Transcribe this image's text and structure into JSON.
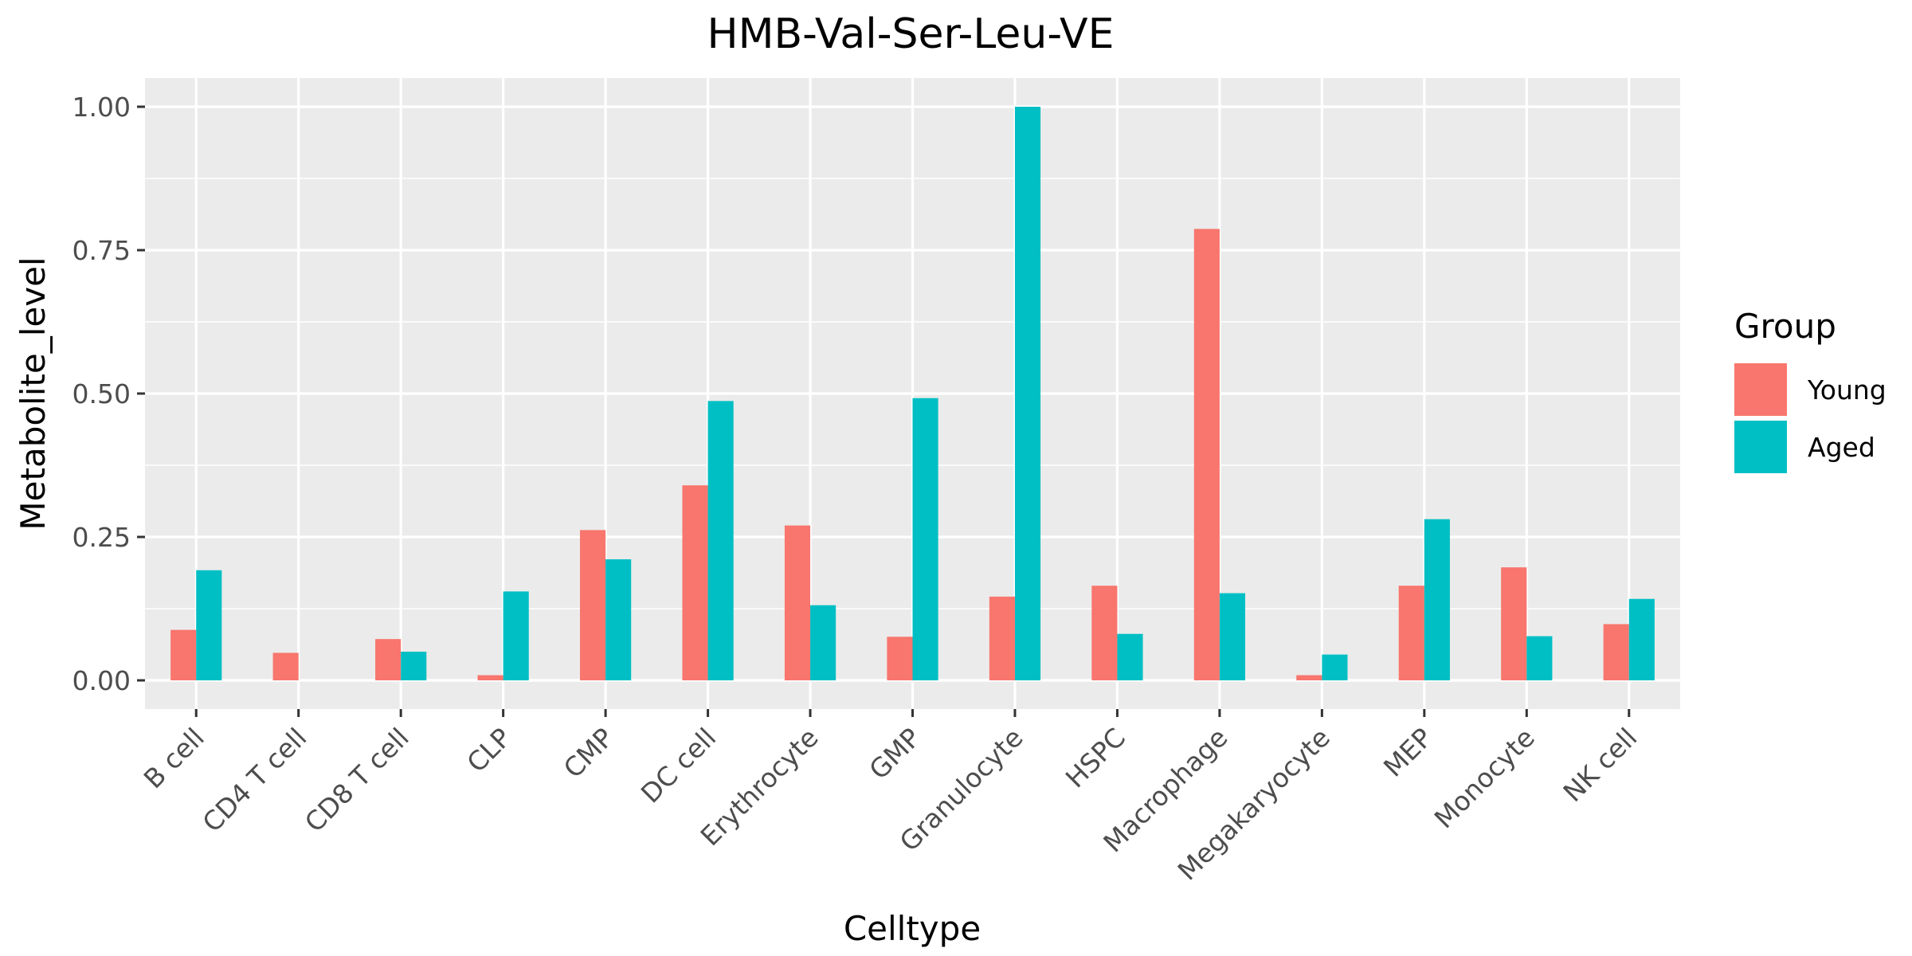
{
  "chart_data": {
    "type": "bar",
    "title": "HMB-Val-Ser-Leu-VE",
    "xlabel": "Celltype",
    "ylabel": "Metabolite_level",
    "ylim": [
      -0.05,
      1.05
    ],
    "yticks": [
      0.0,
      0.25,
      0.5,
      0.75,
      1.0
    ],
    "ytick_labels": [
      "0.00",
      "0.25",
      "0.50",
      "0.75",
      "1.00"
    ],
    "grid": true,
    "legend": {
      "title": "Group",
      "position": "right"
    },
    "categories": [
      "B cell",
      "CD4 T cell",
      "CD8 T cell",
      "CLP",
      "CMP",
      "DC cell",
      "Erythrocyte",
      "GMP",
      "Granulocyte",
      "HSPC",
      "Macrophage",
      "Megakaryocyte",
      "MEP",
      "Monocyte",
      "NK cell"
    ],
    "series": [
      {
        "name": "Young",
        "color": "#F8766D",
        "values": [
          0.088,
          0.048,
          0.072,
          0.009,
          0.262,
          0.34,
          0.27,
          0.076,
          0.146,
          0.165,
          0.787,
          0.009,
          0.165,
          0.197,
          0.098
        ]
      },
      {
        "name": "Aged",
        "color": "#00BFC4",
        "values": [
          0.192,
          0.0,
          0.05,
          0.155,
          0.211,
          0.487,
          0.131,
          0.492,
          1.0,
          0.081,
          0.152,
          0.045,
          0.281,
          0.077,
          0.142
        ]
      }
    ]
  }
}
